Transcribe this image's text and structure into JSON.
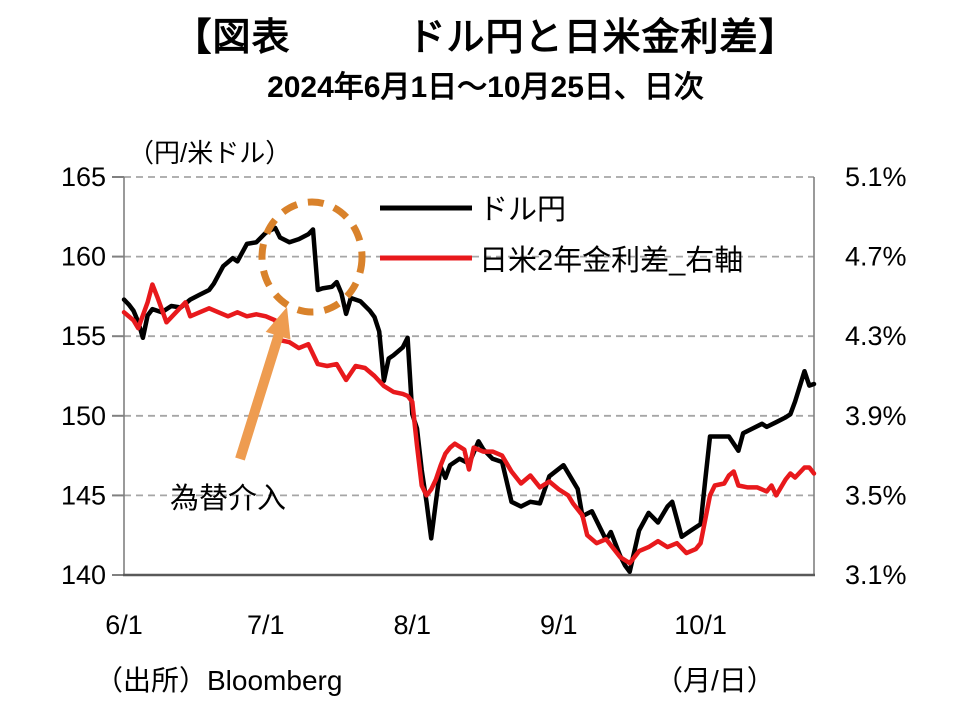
{
  "chart_data": {
    "type": "line",
    "title": "【図表　　　ドル円と日米金利差】",
    "subtitle": "2024年6月1日～10月25日、日次",
    "grid": "horizontal-dashed",
    "grid_color": "#a6a6a6",
    "axis_color": "#808080",
    "bottom_axis_color": "#595959",
    "legend_position": "top-inside",
    "x_axis": {
      "label": "（月/日）",
      "start_date": "6/1",
      "end_date": "10/25",
      "range_days": [
        0,
        146
      ],
      "ticks": [
        {
          "pos": 0,
          "label": "6/1"
        },
        {
          "pos": 30,
          "label": "7/1"
        },
        {
          "pos": 61,
          "label": "8/1"
        },
        {
          "pos": 92,
          "label": "9/1"
        },
        {
          "pos": 122,
          "label": "10/1"
        }
      ]
    },
    "left_axis": {
      "unit": "（円/米ドル）",
      "min": 140,
      "max": 165,
      "ticks": [
        {
          "v": 165,
          "label": "165"
        },
        {
          "v": 160,
          "label": "160"
        },
        {
          "v": 155,
          "label": "155"
        },
        {
          "v": 150,
          "label": "150"
        },
        {
          "v": 145,
          "label": "145"
        },
        {
          "v": 140,
          "label": "140"
        }
      ]
    },
    "right_axis": {
      "min": 3.1,
      "max": 5.1,
      "ticks": [
        {
          "v": 5.1,
          "label": "5.1%"
        },
        {
          "v": 4.7,
          "label": "4.7%"
        },
        {
          "v": 4.3,
          "label": "4.3%"
        },
        {
          "v": 3.9,
          "label": "3.9%"
        },
        {
          "v": 3.5,
          "label": "3.5%"
        },
        {
          "v": 3.1,
          "label": "3.1%"
        }
      ]
    },
    "series": [
      {
        "name": "ドル円",
        "axis": "left",
        "color": "#000000",
        "points": [
          [
            0,
            157.3
          ],
          [
            1,
            157.0
          ],
          [
            2,
            156.6
          ],
          [
            3,
            155.9
          ],
          [
            4,
            154.9
          ],
          [
            5,
            156.3
          ],
          [
            6,
            156.7
          ],
          [
            8,
            156.5
          ],
          [
            10,
            156.9
          ],
          [
            12,
            156.8
          ],
          [
            14,
            157.3
          ],
          [
            16,
            157.6
          ],
          [
            18,
            157.9
          ],
          [
            19,
            158.3
          ],
          [
            21,
            159.4
          ],
          [
            23,
            159.9
          ],
          [
            24,
            159.7
          ],
          [
            26,
            160.8
          ],
          [
            28,
            160.9
          ],
          [
            30,
            161.5
          ],
          [
            32,
            161.8
          ],
          [
            33,
            161.2
          ],
          [
            35,
            160.9
          ],
          [
            37,
            161.1
          ],
          [
            39,
            161.4
          ],
          [
            40,
            161.7
          ],
          [
            41,
            157.9
          ],
          [
            42,
            158.0
          ],
          [
            44,
            158.1
          ],
          [
            45,
            158.4
          ],
          [
            46,
            157.7
          ],
          [
            47,
            156.4
          ],
          [
            48,
            157.4
          ],
          [
            50,
            157.2
          ],
          [
            52,
            156.6
          ],
          [
            53,
            156.2
          ],
          [
            54,
            155.3
          ],
          [
            55,
            152.2
          ],
          [
            56,
            153.6
          ],
          [
            57,
            153.8
          ],
          [
            59,
            154.3
          ],
          [
            60,
            154.9
          ],
          [
            61,
            150.1
          ],
          [
            62,
            149.2
          ],
          [
            63,
            146.6
          ],
          [
            64,
            144.6
          ],
          [
            65,
            142.3
          ],
          [
            66,
            144.6
          ],
          [
            67,
            146.8
          ],
          [
            68,
            146.1
          ],
          [
            69,
            146.9
          ],
          [
            71,
            147.3
          ],
          [
            73,
            147.0
          ],
          [
            75,
            148.4
          ],
          [
            76,
            147.9
          ],
          [
            78,
            147.3
          ],
          [
            80,
            147.1
          ],
          [
            82,
            144.6
          ],
          [
            84,
            144.3
          ],
          [
            86,
            144.6
          ],
          [
            88,
            144.5
          ],
          [
            90,
            146.2
          ],
          [
            93,
            146.9
          ],
          [
            96,
            145.4
          ],
          [
            97,
            143.7
          ],
          [
            99,
            144.0
          ],
          [
            102,
            142.2
          ],
          [
            103,
            142.7
          ],
          [
            105,
            141.2
          ],
          [
            106,
            140.6
          ],
          [
            107,
            140.2
          ],
          [
            109,
            142.8
          ],
          [
            111,
            143.9
          ],
          [
            113,
            143.3
          ],
          [
            115,
            144.3
          ],
          [
            116,
            144.6
          ],
          [
            118,
            142.4
          ],
          [
            120,
            142.8
          ],
          [
            122,
            143.2
          ],
          [
            123,
            146.0
          ],
          [
            124,
            148.7
          ],
          [
            126,
            148.7
          ],
          [
            128,
            148.7
          ],
          [
            130,
            147.8
          ],
          [
            131,
            148.9
          ],
          [
            133,
            149.2
          ],
          [
            135,
            149.5
          ],
          [
            136,
            149.3
          ],
          [
            138,
            149.6
          ],
          [
            140,
            149.9
          ],
          [
            141,
            150.1
          ],
          [
            142,
            150.9
          ],
          [
            144,
            152.8
          ],
          [
            145,
            151.9
          ],
          [
            146,
            152.0
          ]
        ]
      },
      {
        "name": "日米2年金利差_右軸",
        "axis": "right",
        "color": "#e8191c",
        "points": [
          [
            0,
            4.42
          ],
          [
            2,
            4.38
          ],
          [
            3,
            4.34
          ],
          [
            5,
            4.47
          ],
          [
            6,
            4.56
          ],
          [
            7,
            4.5
          ],
          [
            9,
            4.37
          ],
          [
            11,
            4.42
          ],
          [
            13,
            4.47
          ],
          [
            14,
            4.4
          ],
          [
            16,
            4.42
          ],
          [
            18,
            4.44
          ],
          [
            20,
            4.42
          ],
          [
            22,
            4.4
          ],
          [
            24,
            4.42
          ],
          [
            26,
            4.4
          ],
          [
            28,
            4.41
          ],
          [
            30,
            4.4
          ],
          [
            32,
            4.38
          ],
          [
            33,
            4.28
          ],
          [
            35,
            4.27
          ],
          [
            37,
            4.24
          ],
          [
            39,
            4.26
          ],
          [
            41,
            4.16
          ],
          [
            43,
            4.15
          ],
          [
            45,
            4.16
          ],
          [
            47,
            4.08
          ],
          [
            49,
            4.15
          ],
          [
            51,
            4.14
          ],
          [
            53,
            4.1
          ],
          [
            55,
            4.05
          ],
          [
            57,
            4.02
          ],
          [
            59,
            4.01
          ],
          [
            60,
            4.0
          ],
          [
            61,
            3.97
          ],
          [
            62,
            3.75
          ],
          [
            63,
            3.55
          ],
          [
            64,
            3.5
          ],
          [
            65,
            3.53
          ],
          [
            66,
            3.58
          ],
          [
            67,
            3.65
          ],
          [
            68,
            3.71
          ],
          [
            69,
            3.74
          ],
          [
            70,
            3.76
          ],
          [
            72,
            3.73
          ],
          [
            73,
            3.63
          ],
          [
            74,
            3.74
          ],
          [
            76,
            3.72
          ],
          [
            78,
            3.72
          ],
          [
            80,
            3.7
          ],
          [
            82,
            3.62
          ],
          [
            84,
            3.56
          ],
          [
            86,
            3.6
          ],
          [
            88,
            3.54
          ],
          [
            90,
            3.57
          ],
          [
            92,
            3.53
          ],
          [
            94,
            3.5
          ],
          [
            95,
            3.46
          ],
          [
            97,
            3.4
          ],
          [
            98,
            3.3
          ],
          [
            100,
            3.26
          ],
          [
            102,
            3.28
          ],
          [
            104,
            3.22
          ],
          [
            105,
            3.19
          ],
          [
            107,
            3.16
          ],
          [
            109,
            3.22
          ],
          [
            111,
            3.24
          ],
          [
            113,
            3.27
          ],
          [
            115,
            3.24
          ],
          [
            117,
            3.26
          ],
          [
            119,
            3.21
          ],
          [
            121,
            3.23
          ],
          [
            122,
            3.26
          ],
          [
            123,
            3.38
          ],
          [
            124,
            3.5
          ],
          [
            125,
            3.55
          ],
          [
            127,
            3.56
          ],
          [
            128,
            3.6
          ],
          [
            129,
            3.62
          ],
          [
            130,
            3.55
          ],
          [
            132,
            3.54
          ],
          [
            134,
            3.54
          ],
          [
            136,
            3.52
          ],
          [
            137,
            3.55
          ],
          [
            138,
            3.5
          ],
          [
            140,
            3.58
          ],
          [
            141,
            3.61
          ],
          [
            142,
            3.59
          ],
          [
            144,
            3.64
          ],
          [
            145,
            3.64
          ],
          [
            146,
            3.61
          ]
        ]
      }
    ],
    "annotation": {
      "label": "為替介入",
      "circle_color": "#d9822b",
      "arrow_color": "#ee9c50"
    }
  },
  "footer": {
    "source": "（出所）Bloomberg",
    "x_unit": "（月/日）"
  }
}
